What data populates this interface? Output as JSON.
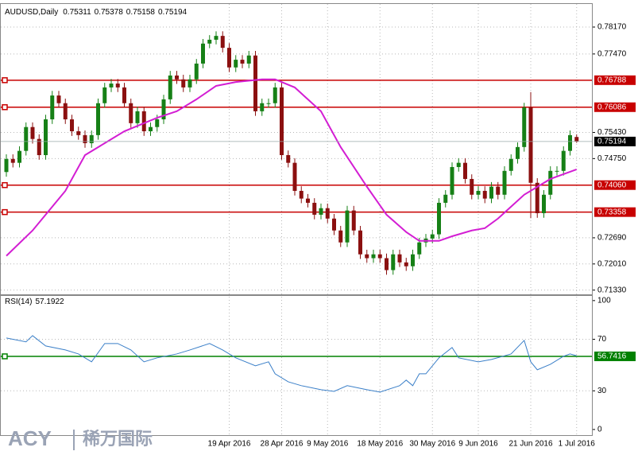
{
  "chart_data": {
    "type": "candlestick",
    "title": "AUDUSD,Daily",
    "categories": [
      null,
      null,
      null,
      null,
      null,
      null,
      null,
      null,
      null,
      null,
      null,
      null,
      null,
      null,
      null,
      null,
      null,
      null,
      null,
      null,
      null,
      null,
      null,
      null,
      null,
      null,
      null,
      null,
      null,
      null,
      null,
      null,
      null,
      null,
      "19 Apr 2016",
      null,
      null,
      null,
      null,
      null,
      null,
      null,
      "28 Apr 2016",
      null,
      null,
      null,
      null,
      null,
      null,
      "9 May 2016",
      null,
      null,
      null,
      null,
      null,
      null,
      null,
      "18 May 2016",
      null,
      null,
      null,
      null,
      null,
      null,
      null,
      "30 May 2016",
      null,
      null,
      null,
      null,
      null,
      null,
      "9 Jun 2016",
      null,
      null,
      null,
      null,
      null,
      null,
      null,
      "21 Jun 2016",
      null,
      null,
      null,
      null,
      null,
      null,
      "1 Jul 2016"
    ],
    "open": [
      0.744,
      0.7474,
      0.7464,
      0.7495,
      0.7557,
      0.7526,
      0.7484,
      0.7577,
      0.7639,
      0.7619,
      0.7577,
      0.7546,
      0.7536,
      0.7515,
      0.7536,
      0.7619,
      0.766,
      0.767,
      0.766,
      0.7619,
      0.7567,
      0.7598,
      0.7546,
      0.7557,
      0.7577,
      0.7629,
      0.7691,
      0.7681,
      0.766,
      0.7681,
      0.7722,
      0.7774,
      0.7784,
      0.7794,
      0.7763,
      0.7712,
      0.7732,
      0.7722,
      0.7743,
      0.7598,
      0.7619,
      0.7619,
      0.766,
      0.7484,
      0.7464,
      0.7391,
      0.7371,
      0.736,
      0.7329,
      0.7346,
      0.7319,
      0.7288,
      0.7257,
      0.734,
      0.7288,
      0.7226,
      0.7216,
      0.7226,
      0.7216,
      0.7185,
      0.7226,
      0.7205,
      0.7195,
      0.7226,
      0.7257,
      0.7267,
      0.7278,
      0.736,
      0.7381,
      0.7453,
      0.7464,
      0.7422,
      0.7381,
      0.7391,
      0.7371,
      0.7402,
      0.7381,
      0.7443,
      0.7474,
      0.7505,
      0.7608,
      0.7412,
      0.7333,
      0.7381,
      0.7443,
      0.7443,
      0.7495,
      0.75311
    ],
    "high": [
      0.7486,
      0.7486,
      0.7507,
      0.7569,
      0.7569,
      0.7538,
      0.7589,
      0.7651,
      0.7651,
      0.7631,
      0.7589,
      0.7558,
      0.7548,
      0.7548,
      0.7631,
      0.7672,
      0.7682,
      0.7682,
      0.7672,
      0.7631,
      0.761,
      0.761,
      0.7569,
      0.7589,
      0.7641,
      0.7703,
      0.7703,
      0.7693,
      0.7693,
      0.7734,
      0.7786,
      0.7796,
      0.7806,
      0.7806,
      0.7775,
      0.7744,
      0.7744,
      0.7755,
      0.7755,
      0.7631,
      0.7631,
      0.7672,
      0.7672,
      0.7496,
      0.7476,
      0.7403,
      0.7383,
      0.7372,
      0.7358,
      0.7358,
      0.7331,
      0.73,
      0.7352,
      0.7352,
      0.73,
      0.7238,
      0.7238,
      0.7238,
      0.7228,
      0.7238,
      0.7238,
      0.7217,
      0.7238,
      0.7269,
      0.7279,
      0.729,
      0.7372,
      0.7393,
      0.7465,
      0.7476,
      0.7476,
      0.7434,
      0.7403,
      0.7403,
      0.7414,
      0.7414,
      0.7455,
      0.7486,
      0.7517,
      0.762,
      0.7648,
      0.7424,
      0.7393,
      0.7455,
      0.7455,
      0.7507,
      0.7548,
      0.75378
    ],
    "low": [
      0.7428,
      0.7452,
      0.7452,
      0.7483,
      0.7514,
      0.7472,
      0.7472,
      0.7565,
      0.7607,
      0.7565,
      0.7534,
      0.7524,
      0.7503,
      0.7503,
      0.7524,
      0.7607,
      0.7648,
      0.7648,
      0.7607,
      0.7555,
      0.7555,
      0.7534,
      0.7534,
      0.7545,
      0.7565,
      0.7617,
      0.7669,
      0.7648,
      0.7648,
      0.7669,
      0.771,
      0.7762,
      0.7772,
      0.7751,
      0.77,
      0.77,
      0.771,
      0.771,
      0.7586,
      0.7586,
      0.7607,
      0.7607,
      0.7472,
      0.7452,
      0.7379,
      0.7359,
      0.7348,
      0.7317,
      0.7317,
      0.7307,
      0.7276,
      0.7245,
      0.7245,
      0.7276,
      0.7214,
      0.7204,
      0.7204,
      0.7204,
      0.7173,
      0.7173,
      0.7193,
      0.7183,
      0.7183,
      0.7214,
      0.7245,
      0.7255,
      0.7266,
      0.7348,
      0.7369,
      0.7441,
      0.741,
      0.7369,
      0.7369,
      0.7359,
      0.7359,
      0.7369,
      0.7369,
      0.7431,
      0.7462,
      0.7493,
      0.732,
      0.7321,
      0.7321,
      0.7369,
      0.7431,
      0.7431,
      0.7483,
      0.75158
    ],
    "close": [
      0.7474,
      0.7464,
      0.7495,
      0.7557,
      0.7526,
      0.7484,
      0.7577,
      0.7639,
      0.7619,
      0.7577,
      0.7546,
      0.7536,
      0.7515,
      0.7536,
      0.7619,
      0.766,
      0.767,
      0.766,
      0.7619,
      0.7567,
      0.7598,
      0.7546,
      0.7557,
      0.7577,
      0.7629,
      0.7691,
      0.7681,
      0.766,
      0.7681,
      0.7722,
      0.7774,
      0.7784,
      0.7794,
      0.7763,
      0.7712,
      0.7732,
      0.7722,
      0.7743,
      0.7598,
      0.7619,
      0.7619,
      0.766,
      0.7484,
      0.7464,
      0.7391,
      0.7371,
      0.736,
      0.7329,
      0.7346,
      0.7319,
      0.7288,
      0.7257,
      0.734,
      0.7288,
      0.7226,
      0.7216,
      0.7226,
      0.7216,
      0.7185,
      0.7226,
      0.7205,
      0.7195,
      0.7226,
      0.7257,
      0.7267,
      0.7278,
      0.736,
      0.7381,
      0.7453,
      0.7464,
      0.7422,
      0.7381,
      0.7391,
      0.7371,
      0.7402,
      0.7381,
      0.7443,
      0.7474,
      0.7505,
      0.7608,
      0.7412,
      0.7333,
      0.7381,
      0.7443,
      0.7443,
      0.7495,
      0.7536,
      0.75194
    ],
    "up_color": "#168016",
    "down_color": "#8b1010",
    "ylim": [
      0.7122,
      0.7877
    ],
    "yticks": [
      {
        "value": 0.7817,
        "label": "0.78170"
      },
      {
        "value": 0.7747,
        "label": "0.77470"
      },
      {
        "value": 0.7543,
        "label": "0.75430"
      },
      {
        "value": 0.7475,
        "label": "0.74750"
      },
      {
        "value": 0.7269,
        "label": "0.72690"
      },
      {
        "value": 0.7201,
        "label": "0.72010"
      },
      {
        "value": 0.7133,
        "label": "0.71330"
      }
    ],
    "grid": true,
    "hlines": [
      0.76788,
      0.76086,
      {
        "value": 0.7406,
        "label": "0.74060"
      },
      0.73358
    ],
    "hline_color": "#c80000",
    "ma": {
      "color": "#d31ed3",
      "x": [
        0,
        4,
        9,
        12,
        15,
        18,
        23,
        26,
        29,
        32,
        35,
        39,
        41,
        44,
        48,
        51,
        55,
        58,
        61,
        63,
        66,
        68,
        71,
        73,
        75,
        79,
        83,
        87
      ],
      "values": [
        0.7222,
        0.7288,
        0.7391,
        0.7484,
        0.7515,
        0.7546,
        0.7581,
        0.7598,
        0.7629,
        0.7664,
        0.7674,
        0.7681,
        0.7681,
        0.766,
        0.7598,
        0.7505,
        0.7402,
        0.7329,
        0.7284,
        0.7261,
        0.7261,
        0.7273,
        0.7288,
        0.7294,
        0.7319,
        0.7381,
        0.7422,
        0.7447
      ]
    },
    "rsi": {
      "title": "RSI(14)",
      "color": "#3a7fc8",
      "x": [
        0,
        3,
        4,
        6,
        9,
        11,
        13,
        15,
        17,
        19,
        21,
        23,
        26,
        28,
        31,
        33,
        35,
        38,
        40,
        41,
        43,
        45,
        48,
        50,
        52,
        55,
        57,
        60,
        61,
        62,
        63,
        64,
        66,
        68,
        69,
        72,
        74,
        77,
        79,
        80,
        81,
        83,
        85,
        86,
        87
      ],
      "values": [
        71,
        68,
        72.8,
        64.8,
        61.7,
        58.6,
        52.5,
        66.7,
        66.7,
        61.7,
        52.5,
        55.6,
        58.6,
        61.7,
        66.7,
        61.7,
        55.6,
        49.4,
        52.5,
        43.2,
        37,
        34,
        30.9,
        29.6,
        34,
        30.9,
        29,
        34,
        38.3,
        34,
        43.2,
        43.2,
        55.6,
        63.6,
        55.6,
        52.5,
        54.3,
        58.6,
        69.1,
        52.5,
        46.3,
        50.6,
        56.8,
        58.6,
        57.1922
      ],
      "ylim": [
        -5,
        103
      ],
      "yticks": [
        100,
        70,
        30,
        0
      ],
      "level": 56.7416,
      "level_color": "#008000"
    },
    "logo": {
      "brand": "ACY",
      "text": "稀万国际"
    }
  }
}
